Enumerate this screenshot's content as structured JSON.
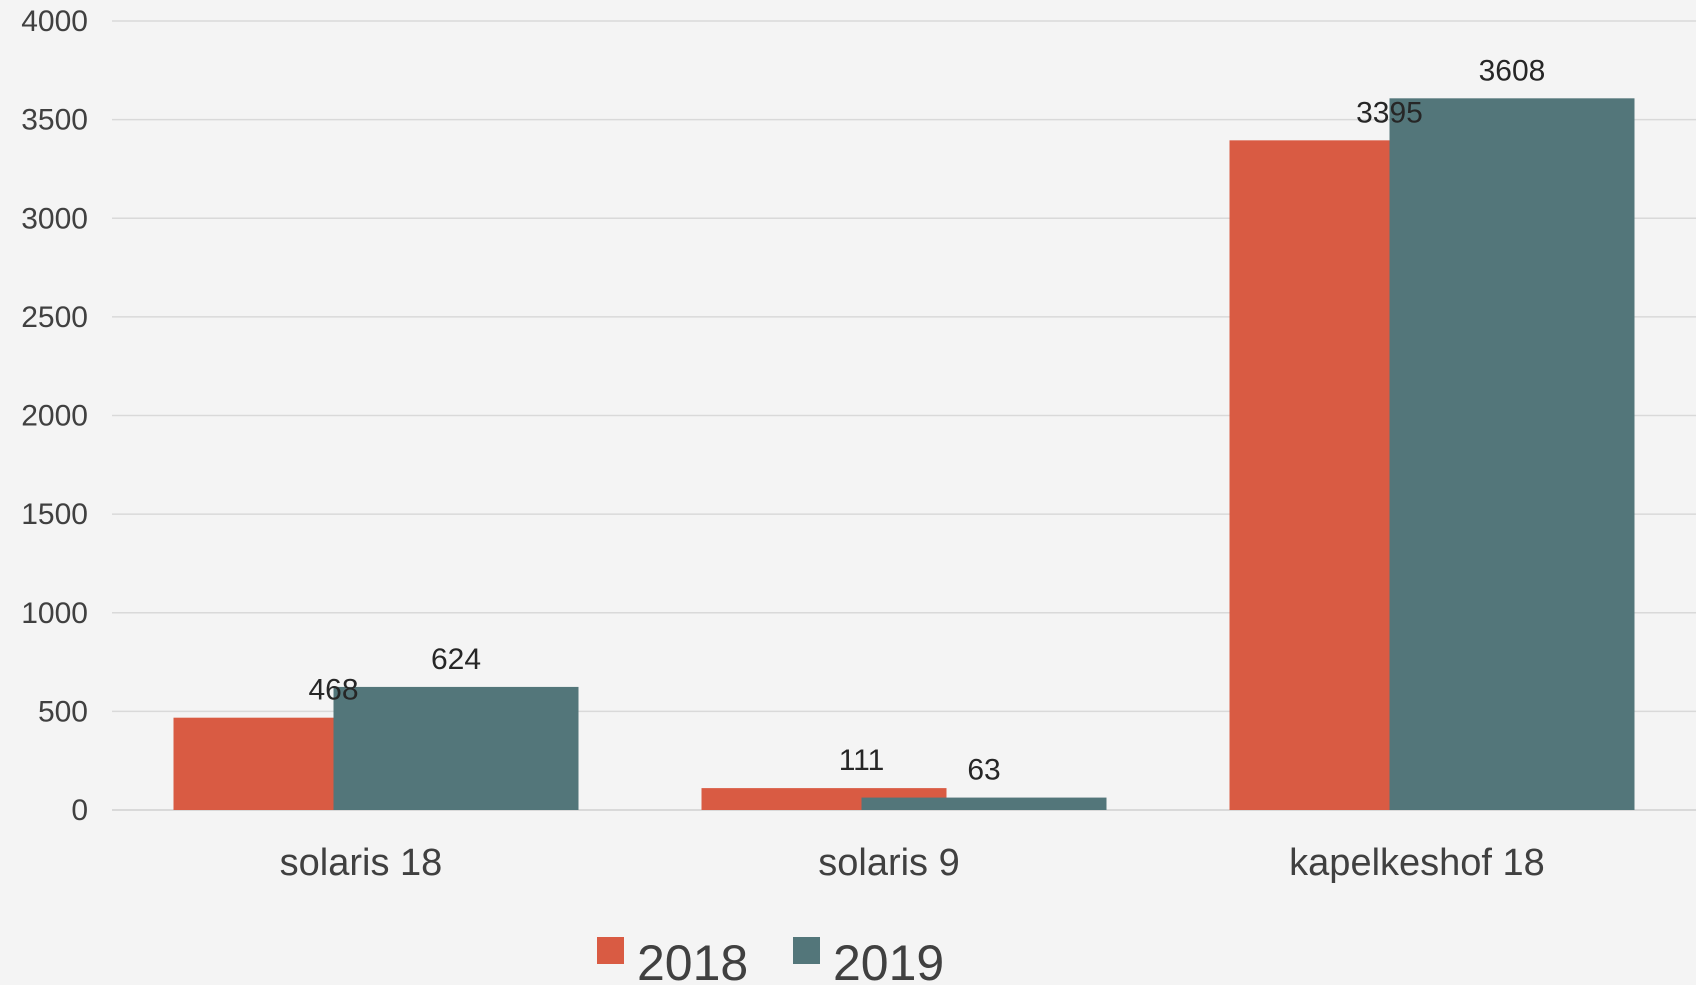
{
  "chart_data": {
    "type": "bar",
    "title": "",
    "xlabel": "",
    "ylabel": "",
    "categories": [
      "solaris 18",
      "solaris 9",
      "kapelkeshof 18"
    ],
    "series": [
      {
        "name": "2018",
        "color": "#d95b43",
        "values": [
          468,
          111,
          3395
        ]
      },
      {
        "name": "2019",
        "color": "#53767a",
        "values": [
          624,
          63,
          3608
        ]
      }
    ],
    "ylim": [
      0,
      4000
    ],
    "yticks": [
      0,
      500,
      1000,
      1500,
      2000,
      2500,
      3000,
      3500,
      4000
    ],
    "grid": true,
    "legend_position": "bottom",
    "data_labels": true
  }
}
